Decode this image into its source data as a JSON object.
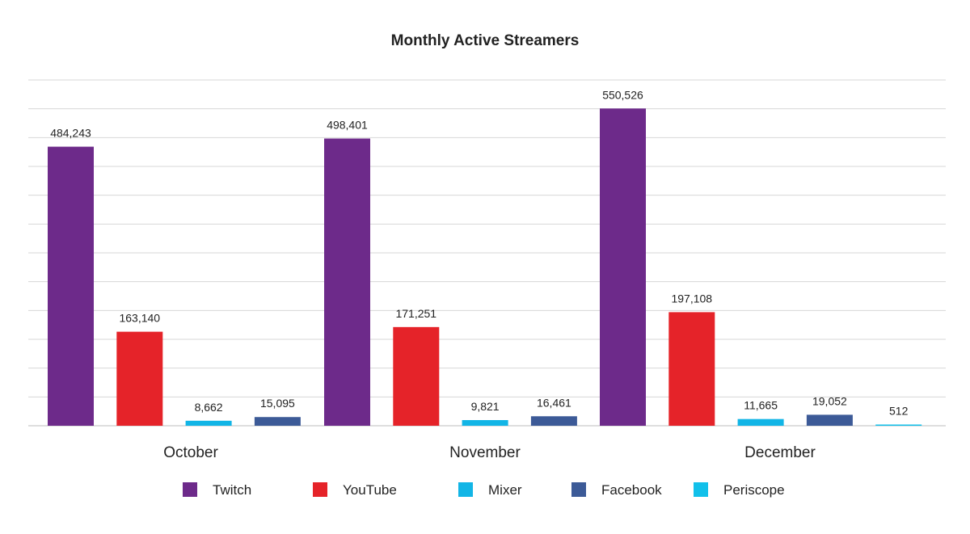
{
  "chart_data": {
    "type": "bar",
    "title": "Monthly Active Streamers",
    "xlabel": "",
    "ylabel": "",
    "categories": [
      "October",
      "November",
      "December"
    ],
    "series": [
      {
        "name": "Twitch",
        "color": "#6d2a8a",
        "values": [
          484243,
          498401,
          550526
        ],
        "labels": [
          "484,243",
          "498,401",
          "550,526"
        ]
      },
      {
        "name": "YouTube",
        "color": "#e52329",
        "values": [
          163140,
          171251,
          197108
        ],
        "labels": [
          "163,140",
          "171,251",
          "197,108"
        ]
      },
      {
        "name": "Mixer",
        "color": "#12b5e6",
        "values": [
          8662,
          9821,
          11665
        ],
        "labels": [
          "8,662",
          "9,821",
          "11,665"
        ]
      },
      {
        "name": "Facebook",
        "color": "#3c5a97",
        "values": [
          15095,
          16461,
          19052
        ],
        "labels": [
          "15,095",
          "16,461",
          "19,052"
        ]
      },
      {
        "name": "Periscope",
        "color": "#12c0ea",
        "values": [
          null,
          null,
          512
        ],
        "labels": [
          "",
          "",
          "512"
        ]
      }
    ],
    "ylim": [
      0,
      600000
    ],
    "grid": true,
    "y_tick_labels": false,
    "legend": "bottom"
  }
}
